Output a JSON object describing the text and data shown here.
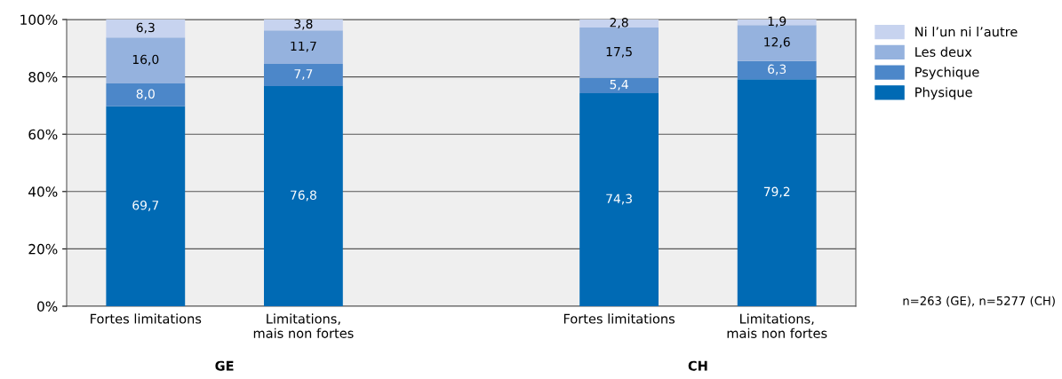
{
  "chart_data": {
    "type": "bar",
    "stacked": true,
    "categories": [
      "Fortes limitations",
      "Limitations,\nmais non fortes",
      null,
      "Fortes limitations",
      "Limitations,\nmais non fortes"
    ],
    "series": [
      {
        "name": "Physique",
        "color": "#006ab4",
        "values": [
          69.7,
          76.8,
          null,
          74.3,
          79.2
        ],
        "value_labels": [
          "69,7",
          "76,8",
          null,
          "74,3",
          "79,2"
        ]
      },
      {
        "name": "Psychique",
        "color": "#4c87c9",
        "values": [
          8.0,
          7.7,
          null,
          5.4,
          6.3
        ],
        "value_labels": [
          "8,0",
          "7,7",
          null,
          "5,4",
          "6,3"
        ]
      },
      {
        "name": "Les deux",
        "color": "#95b2de",
        "values": [
          16.0,
          11.7,
          null,
          17.5,
          12.6
        ],
        "value_labels": [
          "16,0",
          "11,7",
          null,
          "17,5",
          "12,6"
        ]
      },
      {
        "name": "Ni l’un ni l’autre",
        "color": "#c7d3ef",
        "values": [
          6.3,
          3.8,
          null,
          2.8,
          1.9
        ],
        "value_labels": [
          "6,3",
          "3,8",
          null,
          "2,8",
          "1,9"
        ]
      }
    ],
    "ylim": [
      0,
      100
    ],
    "yticks": [
      {
        "value": 0,
        "label": "0%"
      },
      {
        "value": 20,
        "label": "20%"
      },
      {
        "value": 40,
        "label": "40%"
      },
      {
        "value": 60,
        "label": "60%"
      },
      {
        "value": 80,
        "label": "80%"
      },
      {
        "value": 100,
        "label": "100%"
      }
    ],
    "grid": "y",
    "legend": "right",
    "annotations": [
      "GE",
      "CH",
      "n=263 (GE), n=5277 (CH)"
    ]
  }
}
